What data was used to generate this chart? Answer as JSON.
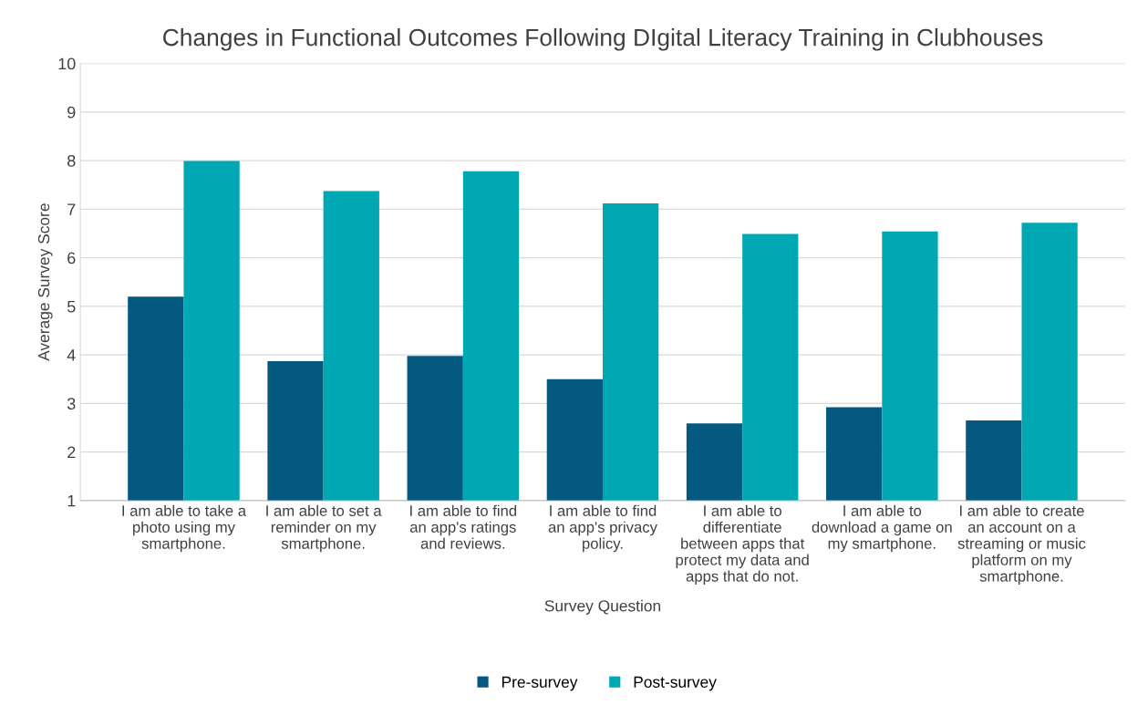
{
  "chart_data": {
    "type": "bar",
    "title": "Changes in Functional Outcomes Following DIgital Literacy Training in Clubhouses",
    "xlabel": "Survey Question",
    "ylabel": "Average Survey Score",
    "categories": [
      "I am able to take a photo using my smartphone.",
      "I am able to set a reminder on my smartphone.",
      "I am able to find an app's ratings and reviews.",
      "I am able to find an app's privacy policy.",
      "I am able to differentiate between apps that protect my data and apps that do not.",
      "I am able to download a game on my smartphone.",
      "I am able to create an account on a streaming or music platform on my smartphone."
    ],
    "series": [
      {
        "name": "Pre-survey",
        "color": "#03597f",
        "values": [
          5.2,
          3.87,
          3.98,
          3.5,
          2.59,
          2.92,
          2.65
        ]
      },
      {
        "name": "Post-survey",
        "color": "#00a8b4",
        "values": [
          7.99,
          7.37,
          7.78,
          7.12,
          6.49,
          6.54,
          6.72
        ]
      }
    ],
    "ylim": [
      1,
      10
    ],
    "yticks": [
      1,
      2,
      3,
      4,
      5,
      6,
      7,
      8,
      9,
      10
    ],
    "grid": "y",
    "legend": "bottom"
  }
}
